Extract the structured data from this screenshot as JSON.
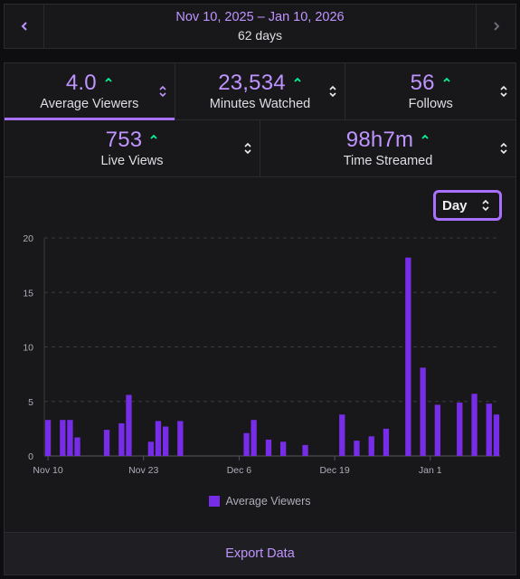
{
  "date_range": {
    "dates": "Nov 10, 2025 – Jan 10, 2026",
    "days": "62 days",
    "prev_icon": "chevron-left-icon",
    "next_icon": "chevron-right-icon"
  },
  "stats": [
    {
      "value": "4.0",
      "label": "Average Viewers",
      "active": true
    },
    {
      "value": "23,534",
      "label": "Minutes Watched",
      "active": false
    },
    {
      "value": "56",
      "label": "Follows",
      "active": false
    },
    {
      "value": "753",
      "label": "Live Views",
      "active": false
    },
    {
      "value": "98h7m",
      "label": "Time Streamed",
      "active": false
    }
  ],
  "granularity": {
    "selected": "Day"
  },
  "legend": {
    "label": "Average Viewers"
  },
  "export": {
    "label": "Export Data"
  },
  "colors": {
    "accent": "#bf94ff",
    "bar": "#772ce8",
    "up": "#00f593",
    "active_border": "#a970ff"
  },
  "chart_data": {
    "type": "bar",
    "title": "",
    "xlabel": "",
    "ylabel": "",
    "ylim": [
      0,
      20
    ],
    "yticks": [
      0,
      5,
      10,
      15,
      20
    ],
    "xtick_labels": [
      {
        "day": 0,
        "label": "Nov 10"
      },
      {
        "day": 13,
        "label": "Nov 23"
      },
      {
        "day": 26,
        "label": "Dec 6"
      },
      {
        "day": 39,
        "label": "Dec 19"
      },
      {
        "day": 52,
        "label": "Jan 1"
      }
    ],
    "series": [
      {
        "name": "Average Viewers",
        "points": [
          {
            "day": 0,
            "value": 3.3
          },
          {
            "day": 2,
            "value": 3.3
          },
          {
            "day": 3,
            "value": 3.3
          },
          {
            "day": 4,
            "value": 1.7
          },
          {
            "day": 8,
            "value": 2.4
          },
          {
            "day": 10,
            "value": 3.0
          },
          {
            "day": 11,
            "value": 5.6
          },
          {
            "day": 14,
            "value": 1.3
          },
          {
            "day": 15,
            "value": 3.2
          },
          {
            "day": 16,
            "value": 2.7
          },
          {
            "day": 18,
            "value": 3.2
          },
          {
            "day": 27,
            "value": 2.1
          },
          {
            "day": 28,
            "value": 3.3
          },
          {
            "day": 30,
            "value": 1.5
          },
          {
            "day": 32,
            "value": 1.3
          },
          {
            "day": 35,
            "value": 1.0
          },
          {
            "day": 40,
            "value": 3.8
          },
          {
            "day": 42,
            "value": 1.4
          },
          {
            "day": 44,
            "value": 1.8
          },
          {
            "day": 46,
            "value": 2.5
          },
          {
            "day": 49,
            "value": 18.2
          },
          {
            "day": 51,
            "value": 8.1
          },
          {
            "day": 53,
            "value": 4.7
          },
          {
            "day": 56,
            "value": 4.9
          },
          {
            "day": 58,
            "value": 5.7
          },
          {
            "day": 60,
            "value": 4.8
          },
          {
            "day": 61,
            "value": 3.8
          }
        ]
      }
    ],
    "grid": true,
    "legend_position": "bottom"
  }
}
